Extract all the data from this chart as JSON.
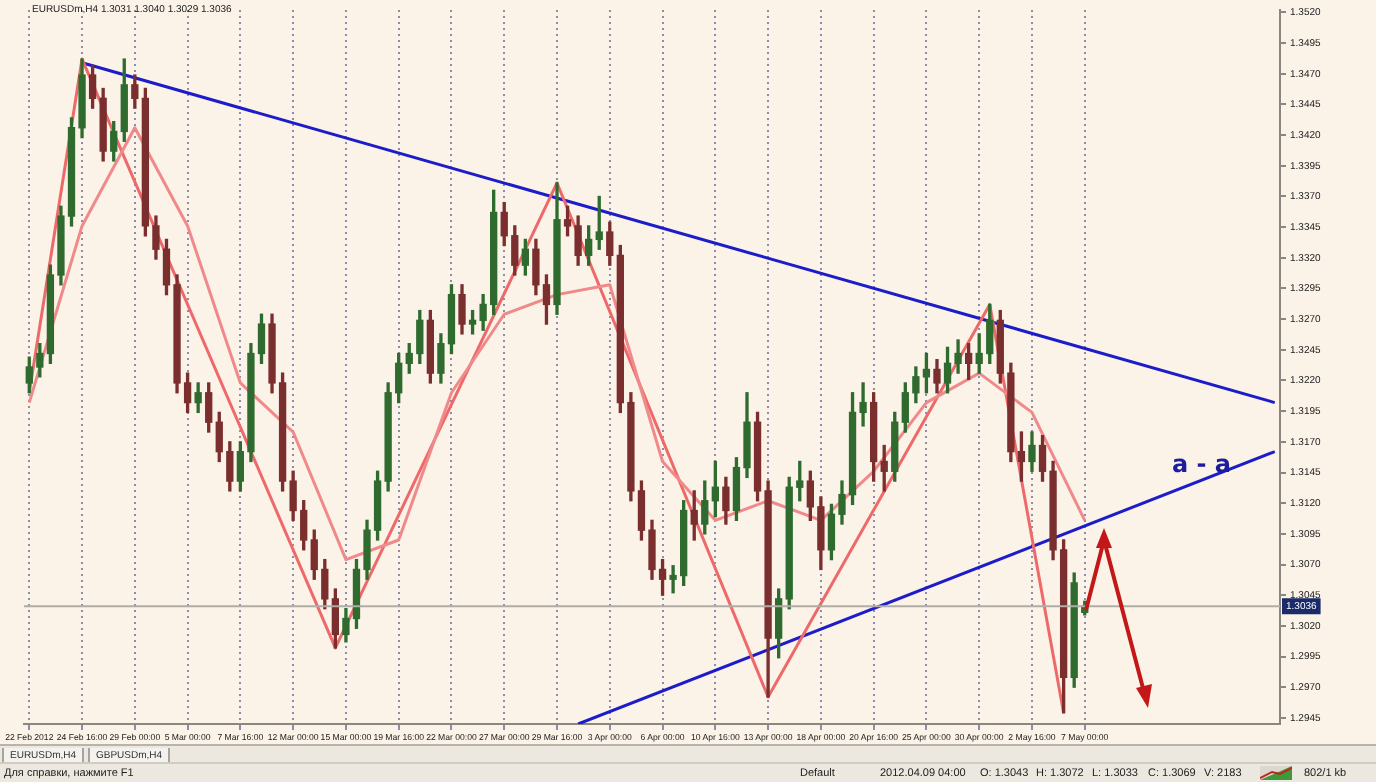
{
  "chart_data": {
    "type": "candlestick",
    "title": "EURUSDm,H4 1.3031 1.3040 1.3029 1.3036",
    "categories": [
      "22 Feb 2012",
      null,
      null,
      null,
      null,
      "24 Feb 16:00",
      null,
      null,
      null,
      null,
      "29 Feb 00:00",
      null,
      null,
      null,
      null,
      "5 Mar 00:00",
      null,
      null,
      null,
      null,
      "7 Mar 16:00",
      null,
      null,
      null,
      null,
      "12 Mar 00:00",
      null,
      null,
      null,
      null,
      "15 Mar 00:00",
      null,
      null,
      null,
      null,
      "19 Mar 16:00",
      null,
      null,
      null,
      null,
      "22 Mar 00:00",
      null,
      null,
      null,
      null,
      "27 Mar 00:00",
      null,
      null,
      null,
      null,
      "29 Mar 16:00",
      null,
      null,
      null,
      null,
      "3 Apr 00:00",
      null,
      null,
      null,
      null,
      "6 Apr 00:00",
      null,
      null,
      null,
      null,
      "10 Apr 16:00",
      null,
      null,
      null,
      null,
      "13 Apr 00:00",
      null,
      null,
      null,
      null,
      "18 Apr 00:00",
      null,
      null,
      null,
      null,
      "20 Apr 16:00",
      null,
      null,
      null,
      null,
      "25 Apr 00:00",
      null,
      null,
      null,
      null,
      "30 Apr 00:00",
      null,
      null,
      null,
      null,
      "2 May 16:00",
      null,
      null,
      null,
      null,
      "7 May 00:00",
      null,
      null,
      null,
      null,
      null,
      null,
      null,
      null,
      null,
      null,
      null,
      null,
      null,
      null,
      null,
      null,
      null,
      null
    ],
    "ohlc": [
      [
        1.3218,
        1.3239,
        1.321,
        1.3231
      ],
      [
        1.3231,
        1.325,
        1.3223,
        1.3242
      ],
      [
        1.3242,
        1.3314,
        1.3234,
        1.3306
      ],
      [
        1.3306,
        1.3362,
        1.3298,
        1.3354
      ],
      [
        1.3354,
        1.3434,
        1.3346,
        1.3426
      ],
      [
        1.3426,
        1.3482,
        1.3418,
        1.3469
      ],
      [
        1.3469,
        1.3477,
        1.3442,
        1.345
      ],
      [
        1.345,
        1.3458,
        1.3399,
        1.3407
      ],
      [
        1.3407,
        1.3431,
        1.3399,
        1.3423
      ],
      [
        1.3423,
        1.3482,
        1.3415,
        1.3461
      ],
      [
        1.3461,
        1.3469,
        1.3442,
        1.345
      ],
      [
        1.345,
        1.3458,
        1.3338,
        1.3346
      ],
      [
        1.3346,
        1.3354,
        1.3319,
        1.3327
      ],
      [
        1.3327,
        1.3335,
        1.329,
        1.3298
      ],
      [
        1.3298,
        1.3306,
        1.321,
        1.3218
      ],
      [
        1.3218,
        1.3226,
        1.3194,
        1.3202
      ],
      [
        1.3202,
        1.3218,
        1.3194,
        1.321
      ],
      [
        1.321,
        1.3218,
        1.3178,
        1.3186
      ],
      [
        1.3186,
        1.3194,
        1.3154,
        1.3162
      ],
      [
        1.3162,
        1.317,
        1.313,
        1.3138
      ],
      [
        1.3138,
        1.317,
        1.313,
        1.3162
      ],
      [
        1.3162,
        1.325,
        1.3154,
        1.3242
      ],
      [
        1.3242,
        1.3274,
        1.3234,
        1.3266
      ],
      [
        1.3266,
        1.3274,
        1.321,
        1.3218
      ],
      [
        1.3218,
        1.3226,
        1.313,
        1.3138
      ],
      [
        1.3138,
        1.3146,
        1.3106,
        1.3114
      ],
      [
        1.3114,
        1.3122,
        1.3082,
        1.309
      ],
      [
        1.309,
        1.3098,
        1.3058,
        1.3066
      ],
      [
        1.3066,
        1.3074,
        1.3034,
        1.3042
      ],
      [
        1.3042,
        1.305,
        1.3002,
        1.3013
      ],
      [
        1.3013,
        1.3034,
        1.3007,
        1.3026
      ],
      [
        1.3026,
        1.3074,
        1.3018,
        1.3066
      ],
      [
        1.3066,
        1.3106,
        1.3058,
        1.3098
      ],
      [
        1.3098,
        1.3146,
        1.309,
        1.3138
      ],
      [
        1.3138,
        1.3218,
        1.313,
        1.321
      ],
      [
        1.321,
        1.3242,
        1.3202,
        1.3234
      ],
      [
        1.3234,
        1.325,
        1.3226,
        1.3242
      ],
      [
        1.3242,
        1.3277,
        1.3234,
        1.3269
      ],
      [
        1.3269,
        1.3277,
        1.3218,
        1.3226
      ],
      [
        1.3226,
        1.3258,
        1.3218,
        1.325
      ],
      [
        1.325,
        1.3298,
        1.3242,
        1.329
      ],
      [
        1.329,
        1.3298,
        1.3258,
        1.3266
      ],
      [
        1.3266,
        1.3277,
        1.3258,
        1.3269
      ],
      [
        1.3269,
        1.329,
        1.3261,
        1.3282
      ],
      [
        1.3282,
        1.3375,
        1.3274,
        1.3357
      ],
      [
        1.3357,
        1.3365,
        1.333,
        1.3338
      ],
      [
        1.3338,
        1.3346,
        1.3306,
        1.3314
      ],
      [
        1.3314,
        1.3335,
        1.3306,
        1.3327
      ],
      [
        1.3327,
        1.3335,
        1.329,
        1.3298
      ],
      [
        1.3298,
        1.3306,
        1.3266,
        1.3282
      ],
      [
        1.3282,
        1.3381,
        1.3274,
        1.3351
      ],
      [
        1.3351,
        1.3362,
        1.3338,
        1.3346
      ],
      [
        1.3346,
        1.3354,
        1.3314,
        1.3322
      ],
      [
        1.3322,
        1.3346,
        1.3314,
        1.3335
      ],
      [
        1.3335,
        1.337,
        1.3327,
        1.3341
      ],
      [
        1.3341,
        1.3349,
        1.3314,
        1.3322
      ],
      [
        1.3322,
        1.333,
        1.3194,
        1.3202
      ],
      [
        1.3202,
        1.321,
        1.3122,
        1.313
      ],
      [
        1.313,
        1.3138,
        1.309,
        1.3098
      ],
      [
        1.3098,
        1.3106,
        1.3058,
        1.3066
      ],
      [
        1.3066,
        1.3074,
        1.3045,
        1.3058
      ],
      [
        1.3058,
        1.3069,
        1.3047,
        1.3061
      ],
      [
        1.3061,
        1.3122,
        1.3053,
        1.3114
      ],
      [
        1.3114,
        1.313,
        1.309,
        1.3103
      ],
      [
        1.3103,
        1.3138,
        1.3095,
        1.3122
      ],
      [
        1.3122,
        1.3154,
        1.3109,
        1.3133
      ],
      [
        1.3133,
        1.3141,
        1.3103,
        1.3114
      ],
      [
        1.3114,
        1.3157,
        1.3106,
        1.3149
      ],
      [
        1.3149,
        1.321,
        1.3141,
        1.3186
      ],
      [
        1.3186,
        1.3194,
        1.3122,
        1.313
      ],
      [
        1.313,
        1.3138,
        1.2962,
        1.301
      ],
      [
        1.301,
        1.305,
        1.2994,
        1.3042
      ],
      [
        1.3042,
        1.3141,
        1.3034,
        1.3133
      ],
      [
        1.3133,
        1.3154,
        1.3122,
        1.3138
      ],
      [
        1.3138,
        1.3146,
        1.3106,
        1.3117
      ],
      [
        1.3117,
        1.3125,
        1.3066,
        1.3082
      ],
      [
        1.3082,
        1.3119,
        1.3074,
        1.3111
      ],
      [
        1.3111,
        1.3138,
        1.3103,
        1.3127
      ],
      [
        1.3127,
        1.321,
        1.3119,
        1.3194
      ],
      [
        1.3194,
        1.3218,
        1.3183,
        1.3202
      ],
      [
        1.3202,
        1.321,
        1.3138,
        1.3154
      ],
      [
        1.3154,
        1.3167,
        1.313,
        1.3146
      ],
      [
        1.3146,
        1.3194,
        1.3138,
        1.3186
      ],
      [
        1.3186,
        1.3218,
        1.3178,
        1.321
      ],
      [
        1.321,
        1.3231,
        1.3202,
        1.3223
      ],
      [
        1.3223,
        1.3242,
        1.321,
        1.3229
      ],
      [
        1.3229,
        1.3237,
        1.321,
        1.3218
      ],
      [
        1.3218,
        1.3247,
        1.321,
        1.3234
      ],
      [
        1.3234,
        1.3253,
        1.3226,
        1.3242
      ],
      [
        1.3242,
        1.325,
        1.3221,
        1.3234
      ],
      [
        1.3234,
        1.3258,
        1.3226,
        1.3242
      ],
      [
        1.3242,
        1.3282,
        1.3234,
        1.3269
      ],
      [
        1.3269,
        1.3277,
        1.3218,
        1.3226
      ],
      [
        1.3226,
        1.3234,
        1.3154,
        1.3162
      ],
      [
        1.3162,
        1.3178,
        1.3138,
        1.3154
      ],
      [
        1.3154,
        1.3178,
        1.3146,
        1.3167
      ],
      [
        1.3167,
        1.3175,
        1.3138,
        1.3146
      ],
      [
        1.3146,
        1.3154,
        1.3074,
        1.3082
      ],
      [
        1.3082,
        1.309,
        1.2949,
        1.2978
      ],
      [
        1.2978,
        1.3063,
        1.297,
        1.3055
      ],
      [
        1.3031,
        1.304,
        1.3029,
        1.3036
      ],
      null,
      null,
      null,
      null,
      null,
      null,
      null,
      null,
      null,
      null,
      null,
      null,
      null,
      null,
      null,
      null,
      null,
      null
    ],
    "colors": [
      "#2f6b2f",
      "#2f6b2f",
      "#2f6b2f",
      "#2f6b2f",
      "#2f6b2f",
      "#2f6b2f",
      "#7a2e2e",
      "#7a2e2e",
      "#2f6b2f",
      "#2f6b2f",
      "#7a2e2e",
      "#7a2e2e",
      "#7a2e2e",
      "#7a2e2e",
      "#7a2e2e",
      "#7a2e2e",
      "#2f6b2f",
      "#7a2e2e",
      "#7a2e2e",
      "#7a2e2e",
      "#2f6b2f",
      "#2f6b2f",
      "#2f6b2f",
      "#7a2e2e",
      "#7a2e2e",
      "#7a2e2e",
      "#7a2e2e",
      "#7a2e2e",
      "#7a2e2e",
      "#7a2e2e",
      "#2f6b2f",
      "#2f6b2f",
      "#2f6b2f",
      "#2f6b2f",
      "#2f6b2f",
      "#2f6b2f",
      "#2f6b2f",
      "#2f6b2f",
      "#7a2e2e",
      "#2f6b2f",
      "#2f6b2f",
      "#7a2e2e",
      "#2f6b2f",
      "#2f6b2f",
      "#2f6b2f",
      "#7a2e2e",
      "#7a2e2e",
      "#2f6b2f",
      "#7a2e2e",
      "#7a2e2e",
      "#2f6b2f",
      "#7a2e2e",
      "#7a2e2e",
      "#2f6b2f",
      "#2f6b2f",
      "#7a2e2e",
      "#7a2e2e",
      "#7a2e2e",
      "#7a2e2e",
      "#7a2e2e",
      "#7a2e2e",
      "#2f6b2f",
      "#2f6b2f",
      "#7a2e2e",
      "#2f6b2f",
      "#2f6b2f",
      "#7a2e2e",
      "#2f6b2f",
      "#2f6b2f",
      "#7a2e2e",
      "#7a2e2e",
      "#2f6b2f",
      "#2f6b2f",
      "#2f6b2f",
      "#7a2e2e",
      "#7a2e2e",
      "#2f6b2f",
      "#2f6b2f",
      "#2f6b2f",
      "#2f6b2f",
      "#7a2e2e",
      "#7a2e2e",
      "#2f6b2f",
      "#2f6b2f",
      "#2f6b2f",
      "#2f6b2f",
      "#7a2e2e",
      "#2f6b2f",
      "#2f6b2f",
      "#7a2e2e",
      "#2f6b2f",
      "#2f6b2f",
      "#7a2e2e",
      "#7a2e2e",
      "#7a2e2e",
      "#2f6b2f",
      "#7a2e2e",
      "#7a2e2e",
      "#7a2e2e",
      "#2f6b2f",
      "#2f6b2f",
      null,
      null,
      null,
      null,
      null,
      null,
      null,
      null,
      null,
      null,
      null,
      null,
      null,
      null,
      null,
      null,
      null,
      null
    ],
    "series": [
      {
        "type": "line",
        "color": "#f08a8a",
        "values": [
          1.3202,
          null,
          null,
          null,
          null,
          1.3346,
          null,
          null,
          null,
          null,
          1.3426,
          null,
          null,
          null,
          null,
          1.3346,
          null,
          null,
          null,
          null,
          1.3218,
          null,
          null,
          null,
          null,
          1.3178,
          null,
          null,
          null,
          null,
          1.3074,
          null,
          null,
          null,
          null,
          1.309,
          null,
          null,
          null,
          null,
          1.321,
          null,
          null,
          null,
          null,
          1.3274,
          null,
          null,
          null,
          null,
          1.329,
          null,
          null,
          null,
          null,
          1.3298,
          null,
          null,
          null,
          null,
          1.3154,
          null,
          null,
          null,
          null,
          1.3106,
          null,
          null,
          null,
          null,
          1.3122,
          null,
          null,
          null,
          null,
          1.3106,
          null,
          null,
          null,
          null,
          1.3146,
          null,
          null,
          null,
          null,
          1.3202,
          null,
          null,
          null,
          null,
          1.3226,
          null,
          null,
          null,
          null,
          1.3194,
          null,
          null,
          null,
          null,
          1.3106,
          null,
          null,
          null,
          null,
          null,
          null,
          null,
          null,
          null,
          null,
          null,
          null,
          null,
          null,
          null,
          null,
          null,
          null
        ]
      },
      {
        "type": "line",
        "color": "#ee6a6a",
        "values": [
          1.321,
          null,
          null,
          null,
          null,
          1.3482,
          null,
          null,
          null,
          null,
          null,
          null,
          null,
          null,
          null,
          null,
          null,
          null,
          null,
          null,
          null,
          null,
          null,
          null,
          null,
          null,
          null,
          null,
          null,
          1.3002,
          null,
          null,
          null,
          null,
          null,
          null,
          null,
          null,
          null,
          null,
          null,
          null,
          null,
          null,
          null,
          null,
          null,
          null,
          null,
          null,
          1.3381,
          null,
          null,
          null,
          null,
          null,
          null,
          null,
          null,
          null,
          null,
          null,
          null,
          null,
          null,
          null,
          null,
          null,
          null,
          null,
          1.2962,
          null,
          null,
          null,
          null,
          null,
          null,
          null,
          null,
          null,
          null,
          null,
          null,
          null,
          null,
          null,
          null,
          null,
          null,
          null,
          null,
          1.3282,
          null,
          null,
          null,
          null,
          null,
          null,
          1.2949,
          null,
          null,
          null,
          null,
          null,
          null,
          null,
          null,
          null,
          null,
          null,
          null,
          null,
          null,
          null,
          null,
          null,
          null,
          null,
          null
        ]
      },
      {
        "type": "line",
        "color": "#1c1cc8",
        "values": [
          null,
          null,
          null,
          null,
          null,
          1.3479,
          null,
          null,
          null,
          null,
          null,
          null,
          null,
          null,
          null,
          null,
          null,
          null,
          null,
          null,
          null,
          null,
          null,
          null,
          null,
          null,
          null,
          null,
          null,
          null,
          null,
          null,
          null,
          null,
          null,
          null,
          null,
          null,
          null,
          null,
          null,
          null,
          null,
          null,
          null,
          null,
          null,
          null,
          null,
          null,
          null,
          null,
          null,
          null,
          null,
          null,
          null,
          null,
          null,
          null,
          null,
          null,
          null,
          null,
          null,
          null,
          null,
          null,
          null,
          null,
          null,
          null,
          null,
          null,
          null,
          null,
          null,
          null,
          null,
          null,
          null,
          null,
          null,
          null,
          null,
          null,
          null,
          null,
          null,
          null,
          null,
          null,
          null,
          null,
          null,
          null,
          null,
          null,
          null,
          null,
          null,
          null,
          null,
          null,
          null,
          null,
          null,
          null,
          null,
          null,
          null,
          null,
          null,
          null,
          null,
          null,
          null,
          null,
          1.3202
        ]
      },
      {
        "type": "line",
        "color": "#1c1cc8",
        "values": [
          null,
          null,
          null,
          null,
          null,
          null,
          null,
          null,
          null,
          null,
          null,
          null,
          null,
          null,
          null,
          null,
          null,
          null,
          null,
          null,
          null,
          null,
          null,
          null,
          null,
          null,
          null,
          null,
          null,
          null,
          null,
          null,
          null,
          null,
          null,
          null,
          null,
          null,
          null,
          null,
          null,
          null,
          null,
          null,
          null,
          null,
          null,
          null,
          null,
          null,
          null,
          null,
          1.294,
          null,
          null,
          null,
          null,
          null,
          null,
          null,
          null,
          null,
          null,
          null,
          null,
          null,
          null,
          null,
          null,
          null,
          null,
          null,
          null,
          null,
          null,
          null,
          null,
          null,
          null,
          null,
          null,
          null,
          null,
          null,
          null,
          null,
          null,
          null,
          null,
          null,
          null,
          null,
          null,
          null,
          null,
          null,
          null,
          null,
          null,
          null,
          null,
          null,
          null,
          null,
          null,
          null,
          null,
          null,
          null,
          null,
          null,
          null,
          null,
          null,
          null,
          null,
          null,
          null,
          1.3162
        ]
      }
    ],
    "ylim": [
      1.294,
      1.3522
    ],
    "yticks": [
      {
        "value": 1.352,
        "label": "1.3520"
      },
      1.3495,
      {
        "value": 1.347,
        "label": "1.3470"
      },
      1.3445,
      {
        "value": 1.342,
        "label": "1.3420"
      },
      1.3395,
      {
        "value": 1.337,
        "label": "1.3370"
      },
      1.3345,
      {
        "value": 1.332,
        "label": "1.3320"
      },
      1.3295,
      {
        "value": 1.327,
        "label": "1.3270"
      },
      1.3245,
      {
        "value": 1.322,
        "label": "1.3220"
      },
      1.3195,
      {
        "value": 1.317,
        "label": "1.3170"
      },
      1.3145,
      {
        "value": 1.312,
        "label": "1.3120"
      },
      1.3095,
      {
        "value": 1.307,
        "label": "1.3070"
      },
      1.3045,
      {
        "value": 1.302,
        "label": "1.3020"
      },
      1.2995,
      {
        "value": 1.297,
        "label": "1.2970"
      },
      1.2945
    ],
    "grid": "x",
    "legend": false,
    "marker": "none",
    "ref_lines": [
      {
        "axis": "y",
        "value": 1.3036,
        "label": "1.3036",
        "color": "#b0aca6"
      }
    ],
    "annotations": [
      "a - a",
      "EURUSDm,H4",
      "GBPUSDm,H4",
      "Для справки, нажмите F1",
      "Default",
      "2012.04.09 04:00",
      "O: 1.3043",
      "H: 1.3072",
      "L: 1.3033",
      "C: 1.3069",
      "V: 2183",
      "802/1 kb"
    ]
  }
}
